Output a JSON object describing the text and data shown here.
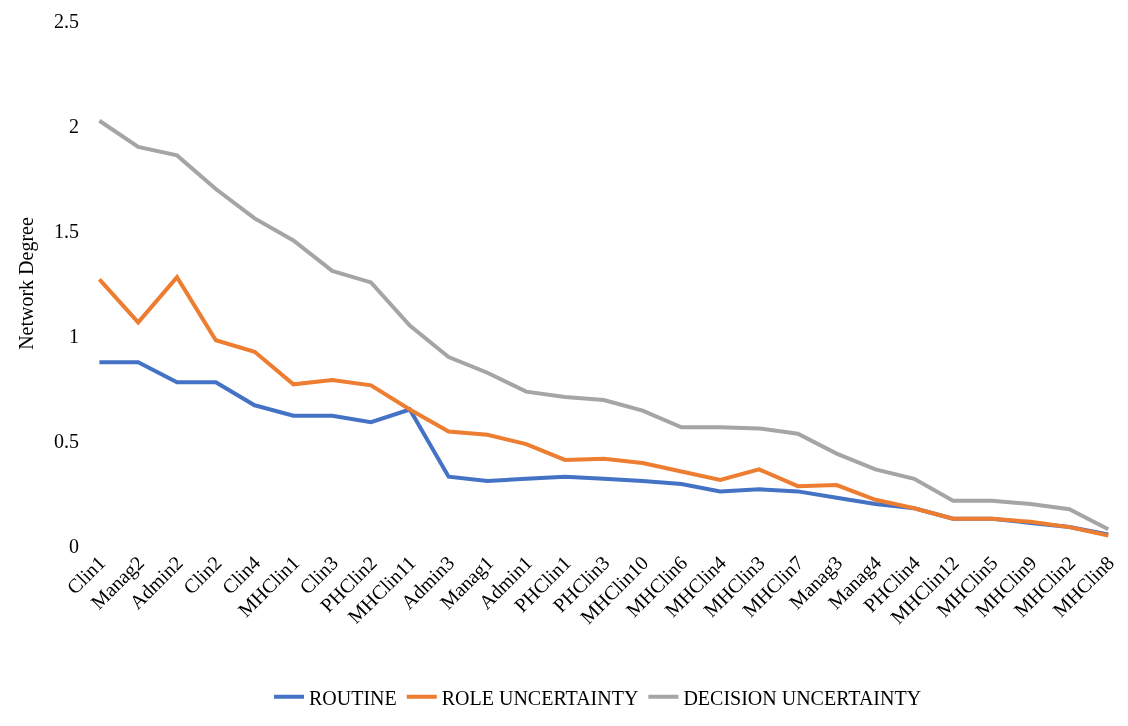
{
  "chart_data": {
    "type": "line",
    "ylabel": "Network Degree",
    "categories": [
      "Clin1",
      "Manag2",
      "Admin2",
      "Clin2",
      "Clin4",
      "MHClin1",
      "Clin3",
      "PHClin2",
      "MHClin11",
      "Admin3",
      "Manag1",
      "Admin1",
      "PHClin1",
      "PHClin3",
      "MHClin10",
      "MHClin6",
      "MHClin4",
      "MHClin3",
      "MHClin7",
      "Manag3",
      "Manag4",
      "PHClin4",
      "MHClin12",
      "MHClin5",
      "MHClin9",
      "MHClin2",
      "MHClin8"
    ],
    "series": [
      {
        "name": "ROUTINE",
        "color": "#4472c4",
        "values": [
          0.875,
          0.875,
          0.78,
          0.78,
          0.67,
          0.62,
          0.62,
          0.59,
          0.65,
          0.33,
          0.31,
          0.32,
          0.33,
          0.32,
          0.31,
          0.295,
          0.26,
          0.27,
          0.26,
          0.23,
          0.2,
          0.18,
          0.13,
          0.13,
          0.11,
          0.09,
          0.055
        ]
      },
      {
        "name": "ROLE UNCERTAINTY",
        "color": "#ed7d31",
        "values": [
          1.27,
          1.065,
          1.28,
          0.98,
          0.925,
          0.77,
          0.79,
          0.765,
          0.65,
          0.545,
          0.53,
          0.485,
          0.41,
          0.415,
          0.395,
          0.355,
          0.315,
          0.365,
          0.285,
          0.29,
          0.22,
          0.18,
          0.13,
          0.13,
          0.115,
          0.09,
          0.05
        ]
      },
      {
        "name": "DECISION UNCERTAINTY",
        "color": "#a5a5a5",
        "values": [
          2.025,
          1.9,
          1.86,
          1.7,
          1.56,
          1.455,
          1.31,
          1.255,
          1.05,
          0.9,
          0.825,
          0.735,
          0.71,
          0.695,
          0.645,
          0.565,
          0.565,
          0.56,
          0.535,
          0.44,
          0.365,
          0.32,
          0.215,
          0.215,
          0.2,
          0.175,
          0.08
        ]
      }
    ],
    "ylim": [
      0,
      2.5
    ],
    "yticks": [
      0,
      0.5,
      1,
      1.5,
      2,
      2.5
    ],
    "legend": "bottom",
    "marker": "none",
    "line_style": "solid"
  }
}
